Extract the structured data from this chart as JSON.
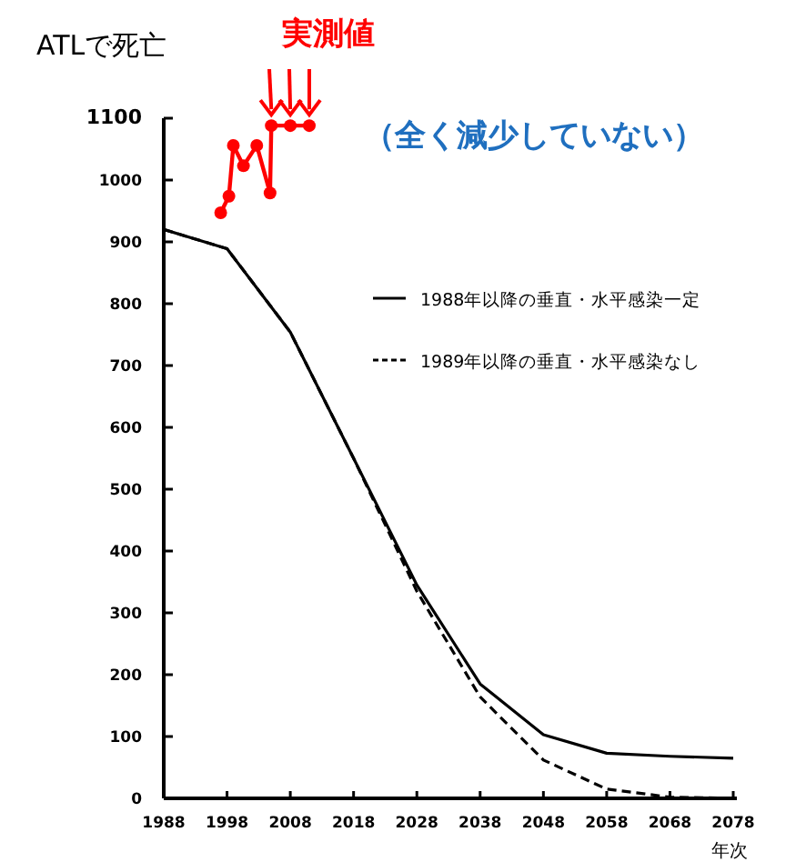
{
  "chart_data": {
    "type": "line",
    "ylabel": "ATLで死亡",
    "xlabel": "年次",
    "annotations": [
      "実測値",
      "（全く減少していない）"
    ],
    "xlim": [
      1988,
      2078
    ],
    "xticks": [
      1988,
      1998,
      2008,
      2018,
      2028,
      2038,
      2048,
      2058,
      2068,
      2078
    ],
    "ylim": [
      0,
      1100
    ],
    "yticks": [
      0,
      100,
      200,
      300,
      400,
      500,
      600,
      700,
      800,
      900,
      1000,
      1100
    ],
    "grid": false,
    "legend": "top right",
    "series": [
      {
        "name": "1988年以降の垂直・水平感染一定",
        "color": "#000000",
        "line_style": "solid",
        "marker": "none",
        "x": [
          1988,
          1998,
          2008,
          2018,
          2028,
          2038,
          2048,
          2058,
          2068,
          2078
        ],
        "values": [
          920,
          889,
          754,
          550,
          345,
          185,
          103,
          73,
          68,
          65
        ]
      },
      {
        "name": "1989年以降の垂直・水平感染なし",
        "color": "#000000",
        "line_style": "dashed",
        "marker": "none",
        "x": [
          1988,
          1998,
          2008,
          2018,
          2028,
          2038,
          2048,
          2058,
          2068,
          2078
        ],
        "values": [
          920,
          889,
          754,
          550,
          335,
          164,
          62,
          15,
          2,
          0
        ]
      },
      {
        "color": "#ff0000",
        "line_style": "solid",
        "marker": "circle",
        "x": [
          1997,
          1998.3,
          1999,
          2000.6,
          2002.7,
          2004.8,
          2005,
          2008,
          2011
        ],
        "values": [
          947,
          974,
          1056,
          1023,
          1056,
          979,
          1088,
          1088,
          1088
        ]
      }
    ]
  }
}
